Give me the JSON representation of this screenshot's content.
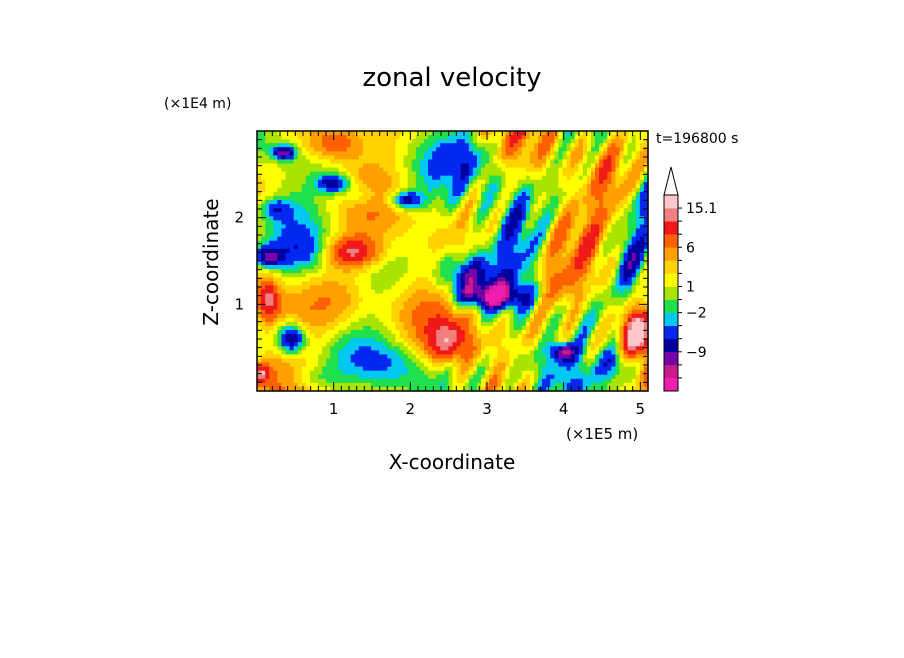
{
  "chart_data": {
    "type": "heatmap",
    "title": "zonal velocity",
    "xlabel": "X-coordinate",
    "ylabel": "Z-coordinate",
    "x_unit": "(×1E5 m)",
    "y_unit": "(×1E4 m)",
    "time_label": "t=196800 s",
    "x_ticks": [
      "1",
      "2",
      "3",
      "4",
      "5"
    ],
    "y_ticks": [
      "1",
      "2"
    ],
    "xlim": [
      0,
      5.1
    ],
    "ylim": [
      0,
      3.0
    ],
    "colorbar": {
      "labels": [
        "15.1",
        "6",
        "1",
        "−2",
        "−9"
      ],
      "colors": [
        "#f01cb0",
        "#c81c8c",
        "#7800a8",
        "#0000a0",
        "#0028f0",
        "#00c8f0",
        "#20e050",
        "#a8e400",
        "#ffff00",
        "#ffd200",
        "#ffa000",
        "#ff6000",
        "#f01818",
        "#f08080",
        "#ffc8c8"
      ]
    },
    "field": {
      "blobs": [
        [
          0.35,
          2.75,
          0.15,
          0.08,
          -12
        ],
        [
          0.25,
          2.1,
          0.2,
          0.12,
          -6
        ],
        [
          0.15,
          1.55,
          0.18,
          0.12,
          -10
        ],
        [
          0.45,
          0.6,
          0.18,
          0.18,
          -12
        ],
        [
          0.15,
          1.05,
          0.15,
          0.25,
          9
        ],
        [
          1.25,
          1.6,
          0.35,
          0.18,
          10
        ],
        [
          1.1,
          1.0,
          0.5,
          0.4,
          4
        ],
        [
          1.35,
          2.25,
          0.3,
          0.15,
          -4
        ],
        [
          1.0,
          2.4,
          0.2,
          0.1,
          -10
        ],
        [
          1.95,
          2.2,
          0.2,
          0.1,
          -10
        ],
        [
          2.5,
          0.55,
          0.3,
          0.25,
          9
        ],
        [
          2.7,
          1.35,
          0.35,
          0.22,
          -8
        ],
        [
          3.05,
          1.1,
          0.45,
          0.15,
          -12
        ],
        [
          3.4,
          1.9,
          0.3,
          0.4,
          -5
        ],
        [
          3.9,
          1.2,
          0.35,
          0.3,
          5
        ],
        [
          4.0,
          0.45,
          0.15,
          0.1,
          -12
        ],
        [
          4.6,
          2.4,
          0.3,
          0.4,
          5
        ],
        [
          4.85,
          1.5,
          0.25,
          0.35,
          -8
        ],
        [
          4.95,
          0.7,
          0.2,
          0.25,
          12
        ],
        [
          4.7,
          0.3,
          0.25,
          0.2,
          -8
        ],
        [
          2.0,
          0.9,
          0.4,
          0.3,
          0.5
        ],
        [
          1.8,
          0.3,
          0.4,
          0.25,
          -3
        ],
        [
          0.7,
          0.15,
          0.3,
          0.15,
          -3
        ],
        [
          2.8,
          2.7,
          0.4,
          0.25,
          -3
        ],
        [
          1.0,
          2.85,
          0.35,
          0.2,
          7
        ],
        [
          0.05,
          0.2,
          0.12,
          0.1,
          10
        ],
        [
          3.6,
          0.35,
          0.4,
          0.25,
          -3
        ],
        [
          0.6,
          1.6,
          0.3,
          0.2,
          -3
        ]
      ]
    }
  }
}
